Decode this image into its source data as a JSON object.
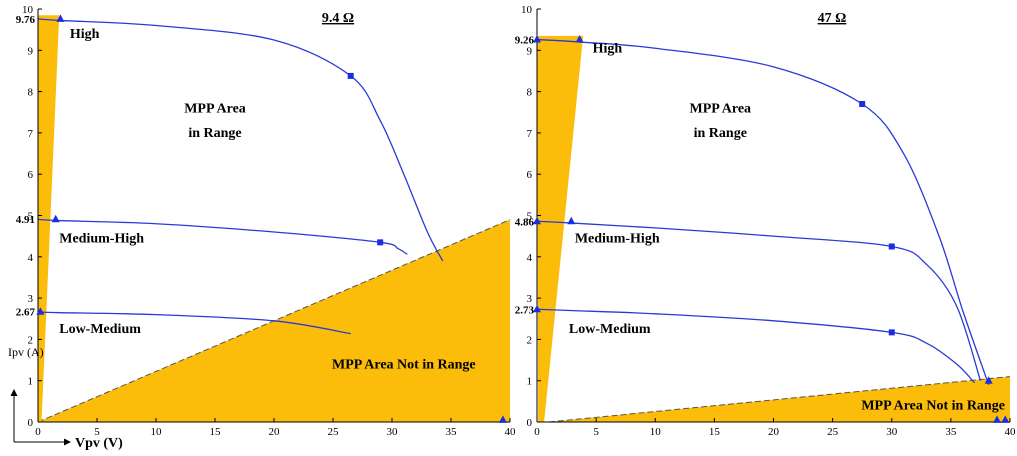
{
  "chart_data": [
    {
      "type": "line",
      "title": "9.4 Ω",
      "xlim": [
        0,
        40
      ],
      "ylim": [
        0,
        10
      ],
      "xticks": [
        0,
        5,
        10,
        15,
        20,
        25,
        30,
        35,
        40
      ],
      "yticks": [
        0,
        1,
        2,
        3,
        4,
        5,
        6,
        7,
        8,
        9,
        10
      ],
      "y_marked_values": [
        {
          "value": 9.76,
          "label": "9.76"
        },
        {
          "value": 4.91,
          "label": "4.91"
        },
        {
          "value": 2.67,
          "label": "2.67"
        }
      ],
      "series": [
        {
          "name": "High",
          "x": [
            0,
            2,
            10,
            20,
            26.5,
            29,
            31,
            33,
            34.3
          ],
          "y": [
            9.76,
            9.72,
            9.6,
            9.25,
            8.38,
            7.3,
            6.0,
            4.6,
            3.9
          ]
        },
        {
          "name": "Medium-High",
          "x": [
            0,
            1.5,
            10,
            20,
            29,
            30.5,
            31.3
          ],
          "y": [
            4.91,
            4.88,
            4.8,
            4.6,
            4.35,
            4.2,
            4.06
          ]
        },
        {
          "name": "Low-Medium",
          "x": [
            0,
            1.5,
            10,
            20,
            26.5
          ],
          "y": [
            2.67,
            2.65,
            2.6,
            2.45,
            2.14
          ]
        }
      ],
      "markers": [
        {
          "x": 1.9,
          "y": 9.76,
          "shape": "triangle"
        },
        {
          "x": 26.5,
          "y": 8.38,
          "shape": "square"
        },
        {
          "x": 1.5,
          "y": 4.91,
          "shape": "triangle"
        },
        {
          "x": 29,
          "y": 4.35,
          "shape": "square"
        },
        {
          "x": 0.2,
          "y": 2.67,
          "shape": "triangle"
        },
        {
          "x": 39.4,
          "y": 0.05,
          "shape": "triangle"
        }
      ],
      "shaded_regions": [
        {
          "label": "MPP Area Not in Range",
          "polygon": [
            [
              0,
              0
            ],
            [
              40,
              4.9
            ],
            [
              40,
              0
            ]
          ]
        },
        {
          "label": "",
          "polygon": [
            [
              0,
              0
            ],
            [
              0,
              9.85
            ],
            [
              1.8,
              9.85
            ],
            [
              0.3,
              0
            ]
          ]
        }
      ],
      "annotations": [
        {
          "text": "High",
          "x": 2.7,
          "y": 9.3
        },
        {
          "text": "MPP Area",
          "x": 15,
          "y": 7.5
        },
        {
          "text": "in Range",
          "x": 15,
          "y": 6.9
        },
        {
          "text": "Medium-High",
          "x": 1.8,
          "y": 4.35
        },
        {
          "text": "Low-Medium",
          "x": 1.8,
          "y": 2.15
        },
        {
          "text": "MPP Area Not in Range",
          "x": 31,
          "y": 1.3
        }
      ],
      "xlabel": "Vpv (V)",
      "ylabel": "Ipv (A)"
    },
    {
      "type": "line",
      "title": "47 Ω",
      "xlim": [
        0,
        40
      ],
      "ylim": [
        0,
        10
      ],
      "xticks": [
        0,
        5,
        10,
        15,
        20,
        25,
        30,
        35,
        40
      ],
      "yticks": [
        0,
        1,
        2,
        3,
        4,
        5,
        6,
        7,
        8,
        9,
        10
      ],
      "y_marked_values": [
        {
          "value": 9.26,
          "label": "9.26"
        },
        {
          "value": 4.86,
          "label": "4.86"
        },
        {
          "value": 2.73,
          "label": "2.73"
        }
      ],
      "series": [
        {
          "name": "High",
          "x": [
            0,
            3.7,
            10,
            20,
            27.5,
            31,
            34,
            36,
            38.2
          ],
          "y": [
            9.26,
            9.2,
            9.05,
            8.6,
            7.7,
            6.5,
            4.5,
            2.7,
            0.9
          ]
        },
        {
          "name": "Medium-High",
          "x": [
            0,
            2.8,
            10,
            20,
            30,
            33,
            35.5,
            37.5
          ],
          "y": [
            4.86,
            4.82,
            4.7,
            4.5,
            4.25,
            3.8,
            2.8,
            1.0
          ]
        },
        {
          "name": "Low-Medium",
          "x": [
            0,
            2.8,
            10,
            20,
            30,
            33,
            35.5,
            37
          ],
          "y": [
            2.73,
            2.7,
            2.62,
            2.45,
            2.17,
            1.9,
            1.4,
            0.95
          ]
        }
      ],
      "markers": [
        {
          "x": 3.6,
          "y": 9.26,
          "shape": "triangle"
        },
        {
          "x": 27.5,
          "y": 7.7,
          "shape": "square"
        },
        {
          "x": 2.9,
          "y": 4.86,
          "shape": "triangle"
        },
        {
          "x": 30,
          "y": 4.25,
          "shape": "square"
        },
        {
          "x": 30,
          "y": 2.17,
          "shape": "square"
        },
        {
          "x": 0,
          "y": 9.26,
          "shape": "triangle"
        },
        {
          "x": 0,
          "y": 4.86,
          "shape": "triangle"
        },
        {
          "x": 0,
          "y": 2.73,
          "shape": "triangle"
        },
        {
          "x": 38.2,
          "y": 1.0,
          "shape": "triangle"
        },
        {
          "x": 38.9,
          "y": 0.05,
          "shape": "triangle"
        },
        {
          "x": 39.6,
          "y": 0.05,
          "shape": "triangle"
        }
      ],
      "shaded_regions": [
        {
          "label": "",
          "polygon": [
            [
              0.1,
              0
            ],
            [
              0,
              9.35
            ],
            [
              3.9,
              9.35
            ],
            [
              0.6,
              0
            ]
          ]
        },
        {
          "label": "MPP Area Not in Range",
          "polygon": [
            [
              1,
              0
            ],
            [
              40,
              1.1
            ],
            [
              40,
              0
            ]
          ]
        }
      ],
      "annotations": [
        {
          "text": "High",
          "x": 4.7,
          "y": 8.95
        },
        {
          "text": "MPP Area",
          "x": 15.5,
          "y": 7.5
        },
        {
          "text": "in Range",
          "x": 15.5,
          "y": 6.9
        },
        {
          "text": "Medium-High",
          "x": 3.2,
          "y": 4.35
        },
        {
          "text": "Low-Medium",
          "x": 2.7,
          "y": 2.15
        },
        {
          "text": "MPP Area Not in Range",
          "x": 33.5,
          "y": 0.3
        }
      ],
      "xlabel": "",
      "ylabel": ""
    }
  ],
  "colors": {
    "curve": "#2a3ad6",
    "marker": "#1a2ee0",
    "fill": "#fbbd0a",
    "axis": "#000000"
  }
}
